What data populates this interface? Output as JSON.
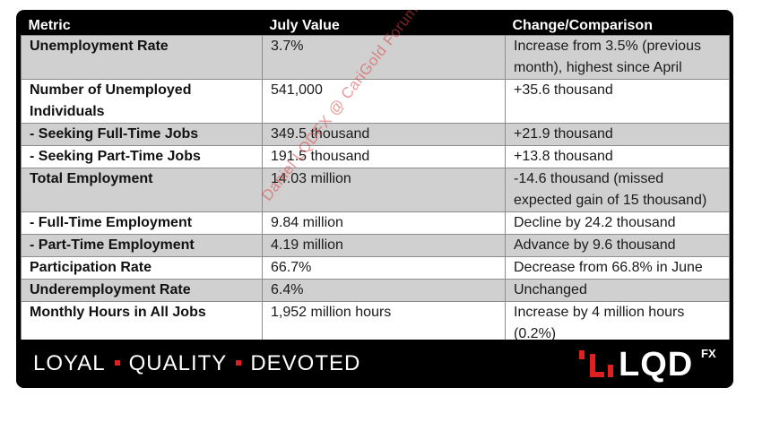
{
  "table": {
    "headers": [
      "Metric",
      "July Value",
      "Change/Comparison"
    ],
    "rows": [
      {
        "metric": "Unemployment Rate",
        "value": "3.7%",
        "change": "Increase from 3.5% (previous month), highest since April"
      },
      {
        "metric": "Number of Unemployed Individuals",
        "value": "541,000",
        "change": "+35.6 thousand"
      },
      {
        "metric": "- Seeking Full-Time Jobs",
        "value": "349.5 thousand",
        "change": "+21.9 thousand"
      },
      {
        "metric": "- Seeking Part-Time Jobs",
        "value": "191.5 thousand",
        "change": "+13.8 thousand"
      },
      {
        "metric": "Total Employment",
        "value": "14.03 million",
        "change": "-14.6 thousand (missed expected gain of 15 thousand)"
      },
      {
        "metric": "- Full-Time Employment",
        "value": "9.84 million",
        "change": "Decline by 24.2 thousand"
      },
      {
        "metric": "- Part-Time Employment",
        "value": "4.19 million",
        "change": "Advance by 9.6 thousand"
      },
      {
        "metric": "Participation Rate",
        "value": "66.7%",
        "change": "Decrease from 66.8% in June"
      },
      {
        "metric": "Underemployment Rate",
        "value": "6.4%",
        "change": "Unchanged"
      },
      {
        "metric": "Monthly Hours in All Jobs",
        "value": "1,952 million hours",
        "change": "Increase by 4 million hours (0.2%)"
      }
    ]
  },
  "watermark": "Daniel LQDFX @ CariGold Forum",
  "footer": {
    "tagline": [
      "LOYAL",
      "QUALITY",
      "DEVOTED"
    ],
    "logo_text": "LQD",
    "logo_superscript": "FX"
  },
  "colors": {
    "accent_red": "#e02020",
    "row_grey": "#d0d0d0",
    "background": "#000000"
  }
}
